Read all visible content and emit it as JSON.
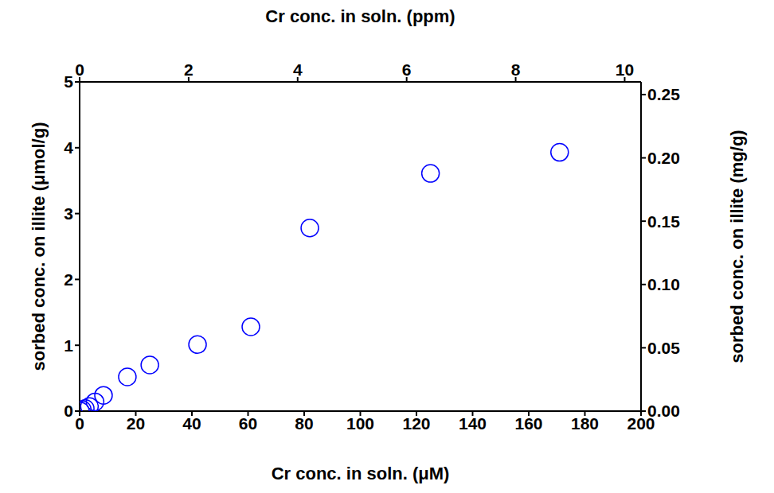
{
  "chart_data": {
    "type": "scatter",
    "xlabel": "Cr conc. in soln. (μM)",
    "x2label": "Cr conc. in soln. (ppm)",
    "ylabel": "sorbed conc. on illite (μmol/g)",
    "y2label": "sorbed conc. on illite (mg/g)",
    "x": [
      0.3,
      1,
      2,
      3.5,
      5.5,
      8.5,
      17,
      25,
      42,
      61,
      82,
      125,
      171
    ],
    "values": [
      0.0,
      0.02,
      0.04,
      0.07,
      0.14,
      0.24,
      0.52,
      0.7,
      1.01,
      1.28,
      2.78,
      3.61,
      3.93
    ],
    "color": "#0000ff",
    "marker": "circle_open",
    "xlim": [
      0,
      200
    ],
    "xticks": [
      0,
      20,
      40,
      60,
      80,
      100,
      120,
      140,
      160,
      180,
      200
    ],
    "x2lim": [
      0,
      10.3
    ],
    "x2ticks": [
      0,
      2,
      4,
      6,
      8,
      10
    ],
    "ylim": [
      0,
      5
    ],
    "yticks": [
      0,
      1,
      2,
      3,
      4,
      5
    ],
    "y2lim": [
      0,
      0.26
    ],
    "y2ticks": [
      {
        "value": 0,
        "label": "0.00"
      },
      {
        "value": 0.05,
        "label": "0.05"
      },
      {
        "value": 0.1,
        "label": "0.10"
      },
      {
        "value": 0.15,
        "label": "0.15"
      },
      {
        "value": 0.2,
        "label": "0.20"
      },
      {
        "value": 0.25,
        "label": "0.25"
      }
    ],
    "grid": false
  }
}
